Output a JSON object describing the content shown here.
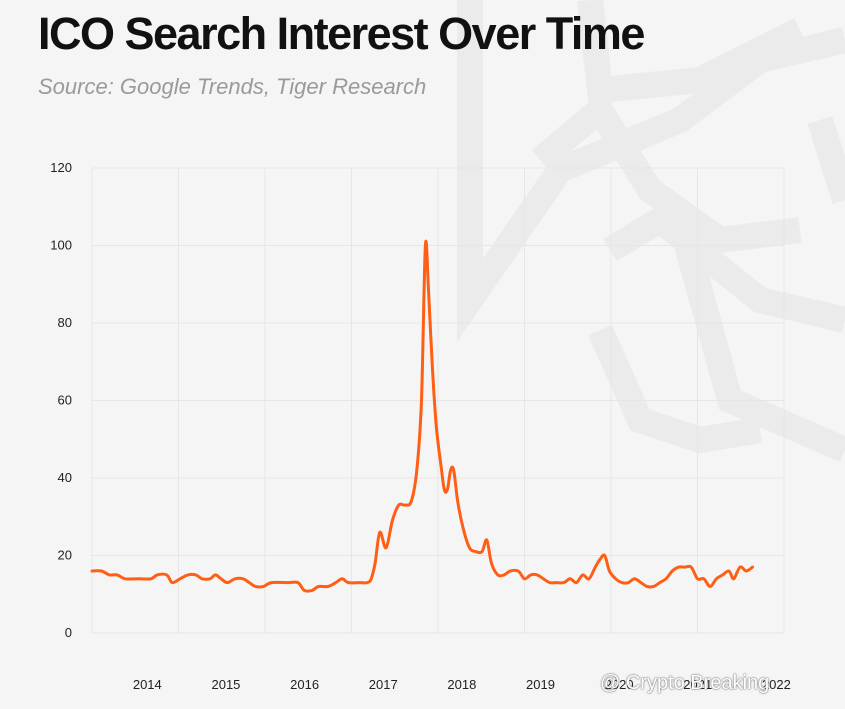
{
  "header": {
    "title": "ICO Search Interest Over Time",
    "subtitle": "Source: Google Trends, Tiger Research"
  },
  "colors": {
    "line": "#ff5e14",
    "grid": "#e6e6e6",
    "axis_text": "#222222",
    "background": "#f5f5f5",
    "logo": "#ebebeb"
  },
  "watermark": {
    "text": "@ Crypto Breaking"
  },
  "chart_data": {
    "type": "line",
    "title": "ICO Search Interest Over Time",
    "subtitle": "Source: Google Trends, Tiger Research",
    "xlabel": "",
    "ylabel": "",
    "grid": true,
    "legend": "none",
    "xlim": [
      2013.5,
      2022.3
    ],
    "ylim": [
      0,
      120
    ],
    "y_ticks": [
      0,
      20,
      40,
      60,
      80,
      100,
      120
    ],
    "x_ticks": [
      {
        "value": 2014,
        "label": "2014"
      },
      {
        "value": 2015,
        "label": "2015"
      },
      {
        "value": 2016,
        "label": "2016"
      },
      {
        "value": 2017,
        "label": "2017"
      },
      {
        "value": 2018,
        "label": "2018"
      },
      {
        "value": 2019,
        "label": "2019"
      },
      {
        "value": 2020,
        "label": "2020"
      },
      {
        "value": 2021,
        "label": "2021"
      },
      {
        "value": 2022,
        "label": "2022"
      }
    ],
    "series": [
      {
        "name": "ICO",
        "points": [
          [
            2013.5,
            16
          ],
          [
            2013.62,
            16
          ],
          [
            2013.72,
            15
          ],
          [
            2013.82,
            15
          ],
          [
            2013.92,
            14
          ],
          [
            2014.1,
            14
          ],
          [
            2014.25,
            14
          ],
          [
            2014.33,
            15
          ],
          [
            2014.45,
            15
          ],
          [
            2014.52,
            13
          ],
          [
            2014.62,
            14
          ],
          [
            2014.72,
            15
          ],
          [
            2014.82,
            15
          ],
          [
            2014.9,
            14
          ],
          [
            2015.0,
            14
          ],
          [
            2015.07,
            15
          ],
          [
            2015.14,
            14
          ],
          [
            2015.22,
            13
          ],
          [
            2015.32,
            14
          ],
          [
            2015.42,
            14
          ],
          [
            2015.5,
            13
          ],
          [
            2015.58,
            12
          ],
          [
            2015.68,
            12
          ],
          [
            2015.78,
            13
          ],
          [
            2016.0,
            13
          ],
          [
            2016.12,
            13
          ],
          [
            2016.2,
            11
          ],
          [
            2016.3,
            11
          ],
          [
            2016.38,
            12
          ],
          [
            2016.5,
            12
          ],
          [
            2016.6,
            13
          ],
          [
            2016.68,
            14
          ],
          [
            2016.76,
            13
          ],
          [
            2016.9,
            13
          ],
          [
            2017.0,
            13
          ],
          [
            2017.05,
            14
          ],
          [
            2017.1,
            18
          ],
          [
            2017.16,
            26
          ],
          [
            2017.24,
            22
          ],
          [
            2017.32,
            29
          ],
          [
            2017.4,
            33
          ],
          [
            2017.48,
            33
          ],
          [
            2017.56,
            34
          ],
          [
            2017.63,
            42
          ],
          [
            2017.69,
            60
          ],
          [
            2017.74,
            100
          ],
          [
            2017.78,
            88
          ],
          [
            2017.83,
            68
          ],
          [
            2017.88,
            53
          ],
          [
            2017.94,
            43
          ],
          [
            2017.98,
            37
          ],
          [
            2018.02,
            37
          ],
          [
            2018.06,
            42
          ],
          [
            2018.1,
            42
          ],
          [
            2018.15,
            34
          ],
          [
            2018.22,
            27
          ],
          [
            2018.3,
            22
          ],
          [
            2018.38,
            21
          ],
          [
            2018.46,
            21
          ],
          [
            2018.52,
            24
          ],
          [
            2018.58,
            18
          ],
          [
            2018.66,
            15
          ],
          [
            2018.74,
            15
          ],
          [
            2018.82,
            16
          ],
          [
            2018.92,
            16
          ],
          [
            2019.0,
            14
          ],
          [
            2019.08,
            15
          ],
          [
            2019.16,
            15
          ],
          [
            2019.24,
            14
          ],
          [
            2019.32,
            13
          ],
          [
            2019.4,
            13
          ],
          [
            2019.5,
            13
          ],
          [
            2019.58,
            14
          ],
          [
            2019.66,
            13
          ],
          [
            2019.74,
            15
          ],
          [
            2019.82,
            14
          ],
          [
            2019.9,
            17
          ],
          [
            2019.96,
            19
          ],
          [
            2020.02,
            20
          ],
          [
            2020.08,
            16
          ],
          [
            2020.16,
            14
          ],
          [
            2020.24,
            13
          ],
          [
            2020.32,
            13
          ],
          [
            2020.4,
            14
          ],
          [
            2020.48,
            13
          ],
          [
            2020.56,
            12
          ],
          [
            2020.64,
            12
          ],
          [
            2020.72,
            13
          ],
          [
            2020.8,
            14
          ],
          [
            2020.88,
            16
          ],
          [
            2020.96,
            17
          ],
          [
            2021.04,
            17
          ],
          [
            2021.12,
            17
          ],
          [
            2021.2,
            14
          ],
          [
            2021.28,
            14
          ],
          [
            2021.36,
            12
          ],
          [
            2021.44,
            14
          ],
          [
            2021.52,
            15
          ],
          [
            2021.6,
            16
          ],
          [
            2021.66,
            14
          ],
          [
            2021.74,
            17
          ],
          [
            2021.82,
            16
          ],
          [
            2021.9,
            17
          ]
        ]
      }
    ]
  }
}
